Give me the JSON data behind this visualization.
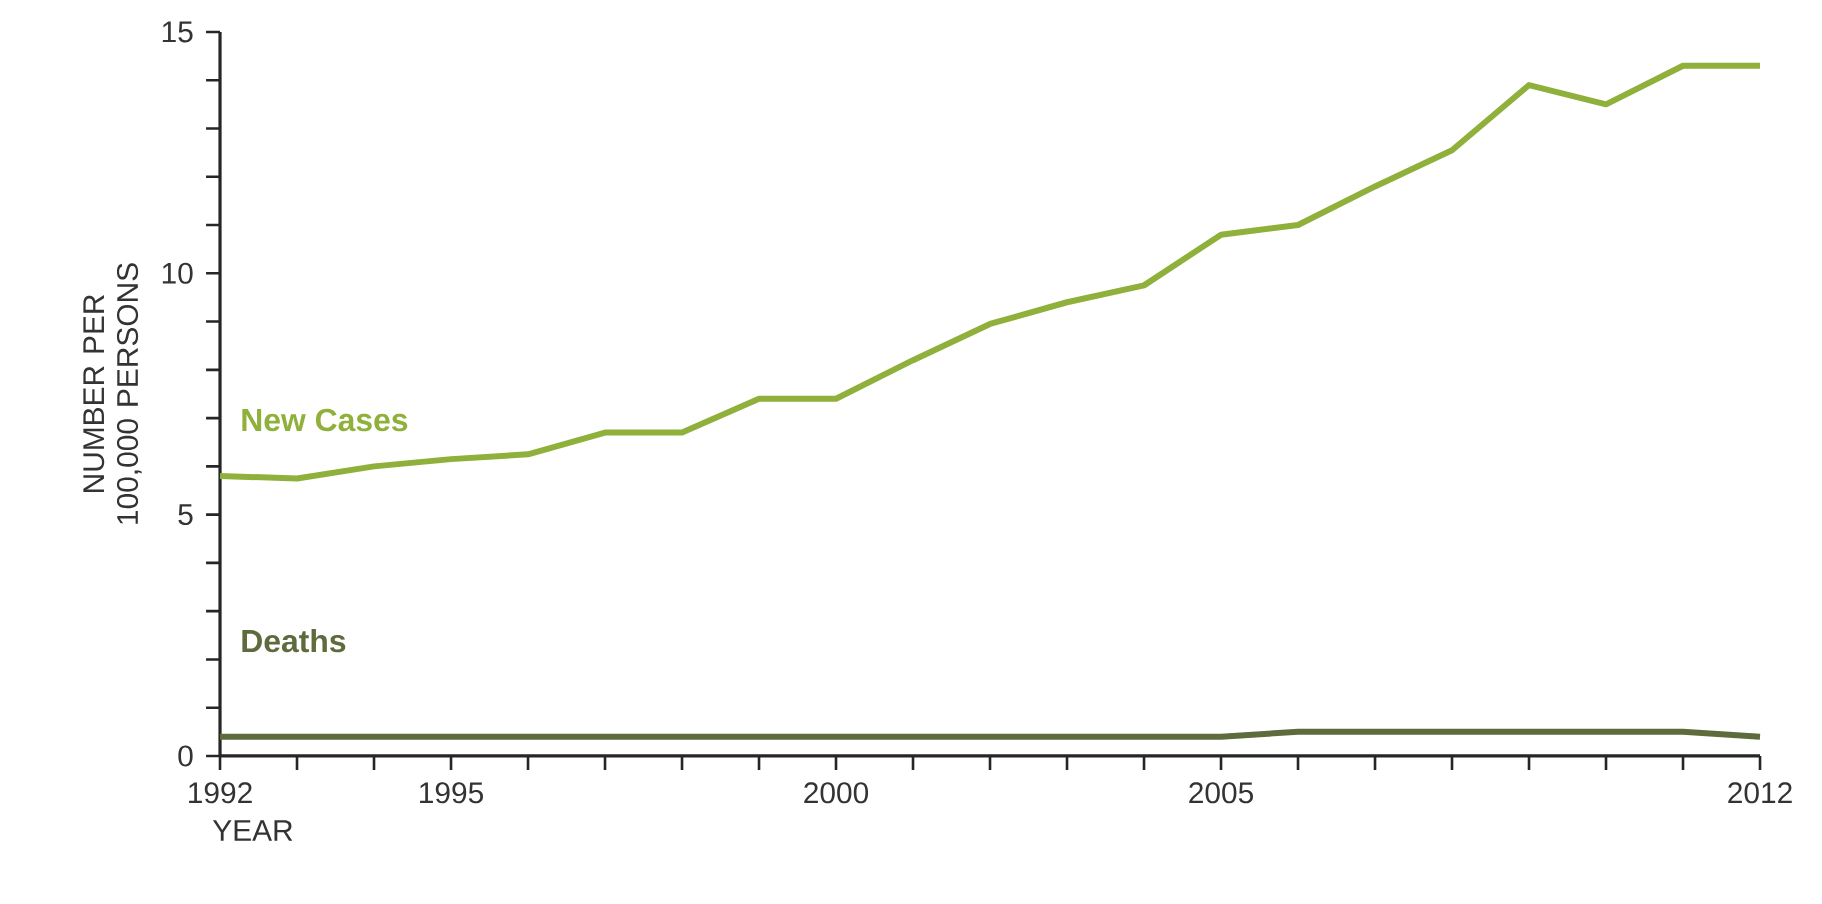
{
  "chart_data": {
    "type": "line",
    "xlabel": "YEAR",
    "ylabel": "NUMBER PER 100,000 PERSONS",
    "x": [
      1992,
      1993,
      1994,
      1995,
      1996,
      1997,
      1998,
      1999,
      2000,
      2001,
      2002,
      2003,
      2004,
      2005,
      2006,
      2007,
      2008,
      2009,
      2010,
      2011,
      2012
    ],
    "series": [
      {
        "name": "New Cases",
        "color": "#8fb03a",
        "values": [
          5.8,
          5.75,
          6.0,
          6.15,
          6.25,
          6.7,
          6.7,
          7.4,
          7.4,
          8.2,
          8.95,
          9.4,
          9.75,
          10.8,
          11.0,
          11.8,
          12.55,
          13.9,
          13.5,
          14.3,
          14.3
        ]
      },
      {
        "name": "Deaths",
        "color": "#5e6b3c",
        "values": [
          0.4,
          0.4,
          0.4,
          0.4,
          0.4,
          0.4,
          0.4,
          0.4,
          0.4,
          0.4,
          0.4,
          0.4,
          0.4,
          0.4,
          0.5,
          0.5,
          0.5,
          0.5,
          0.5,
          0.5,
          0.4
        ]
      }
    ],
    "xlim": [
      1992,
      2012
    ],
    "xticks": [
      1992,
      {
        "value": 1993,
        "label": null
      },
      {
        "value": 1994,
        "label": null
      },
      1995,
      {
        "value": 1996,
        "label": null
      },
      {
        "value": 1997,
        "label": null
      },
      {
        "value": 1998,
        "label": null
      },
      {
        "value": 1999,
        "label": null
      },
      2000,
      {
        "value": 2001,
        "label": null
      },
      {
        "value": 2002,
        "label": null
      },
      {
        "value": 2003,
        "label": null
      },
      {
        "value": 2004,
        "label": null
      },
      2005,
      {
        "value": 2006,
        "label": null
      },
      {
        "value": 2007,
        "label": null
      },
      {
        "value": 2008,
        "label": null
      },
      {
        "value": 2009,
        "label": null
      },
      {
        "value": 2010,
        "label": null
      },
      {
        "value": 2011,
        "label": null
      },
      2012
    ],
    "ylim": [
      0,
      15
    ],
    "yticks": [
      0,
      {
        "value": 1,
        "label": null
      },
      {
        "value": 2,
        "label": null
      },
      {
        "value": 3,
        "label": null
      },
      {
        "value": 4,
        "label": null
      },
      5,
      {
        "value": 6,
        "label": null
      },
      {
        "value": 7,
        "label": null
      },
      {
        "value": 8,
        "label": null
      },
      {
        "value": 9,
        "label": null
      },
      10,
      {
        "value": 11,
        "label": null
      },
      {
        "value": 12,
        "label": null
      },
      {
        "value": 13,
        "label": null
      },
      {
        "value": 14,
        "label": null
      },
      15
    ],
    "grid": false,
    "legend": false,
    "marker": "none",
    "line_style": "solid"
  }
}
